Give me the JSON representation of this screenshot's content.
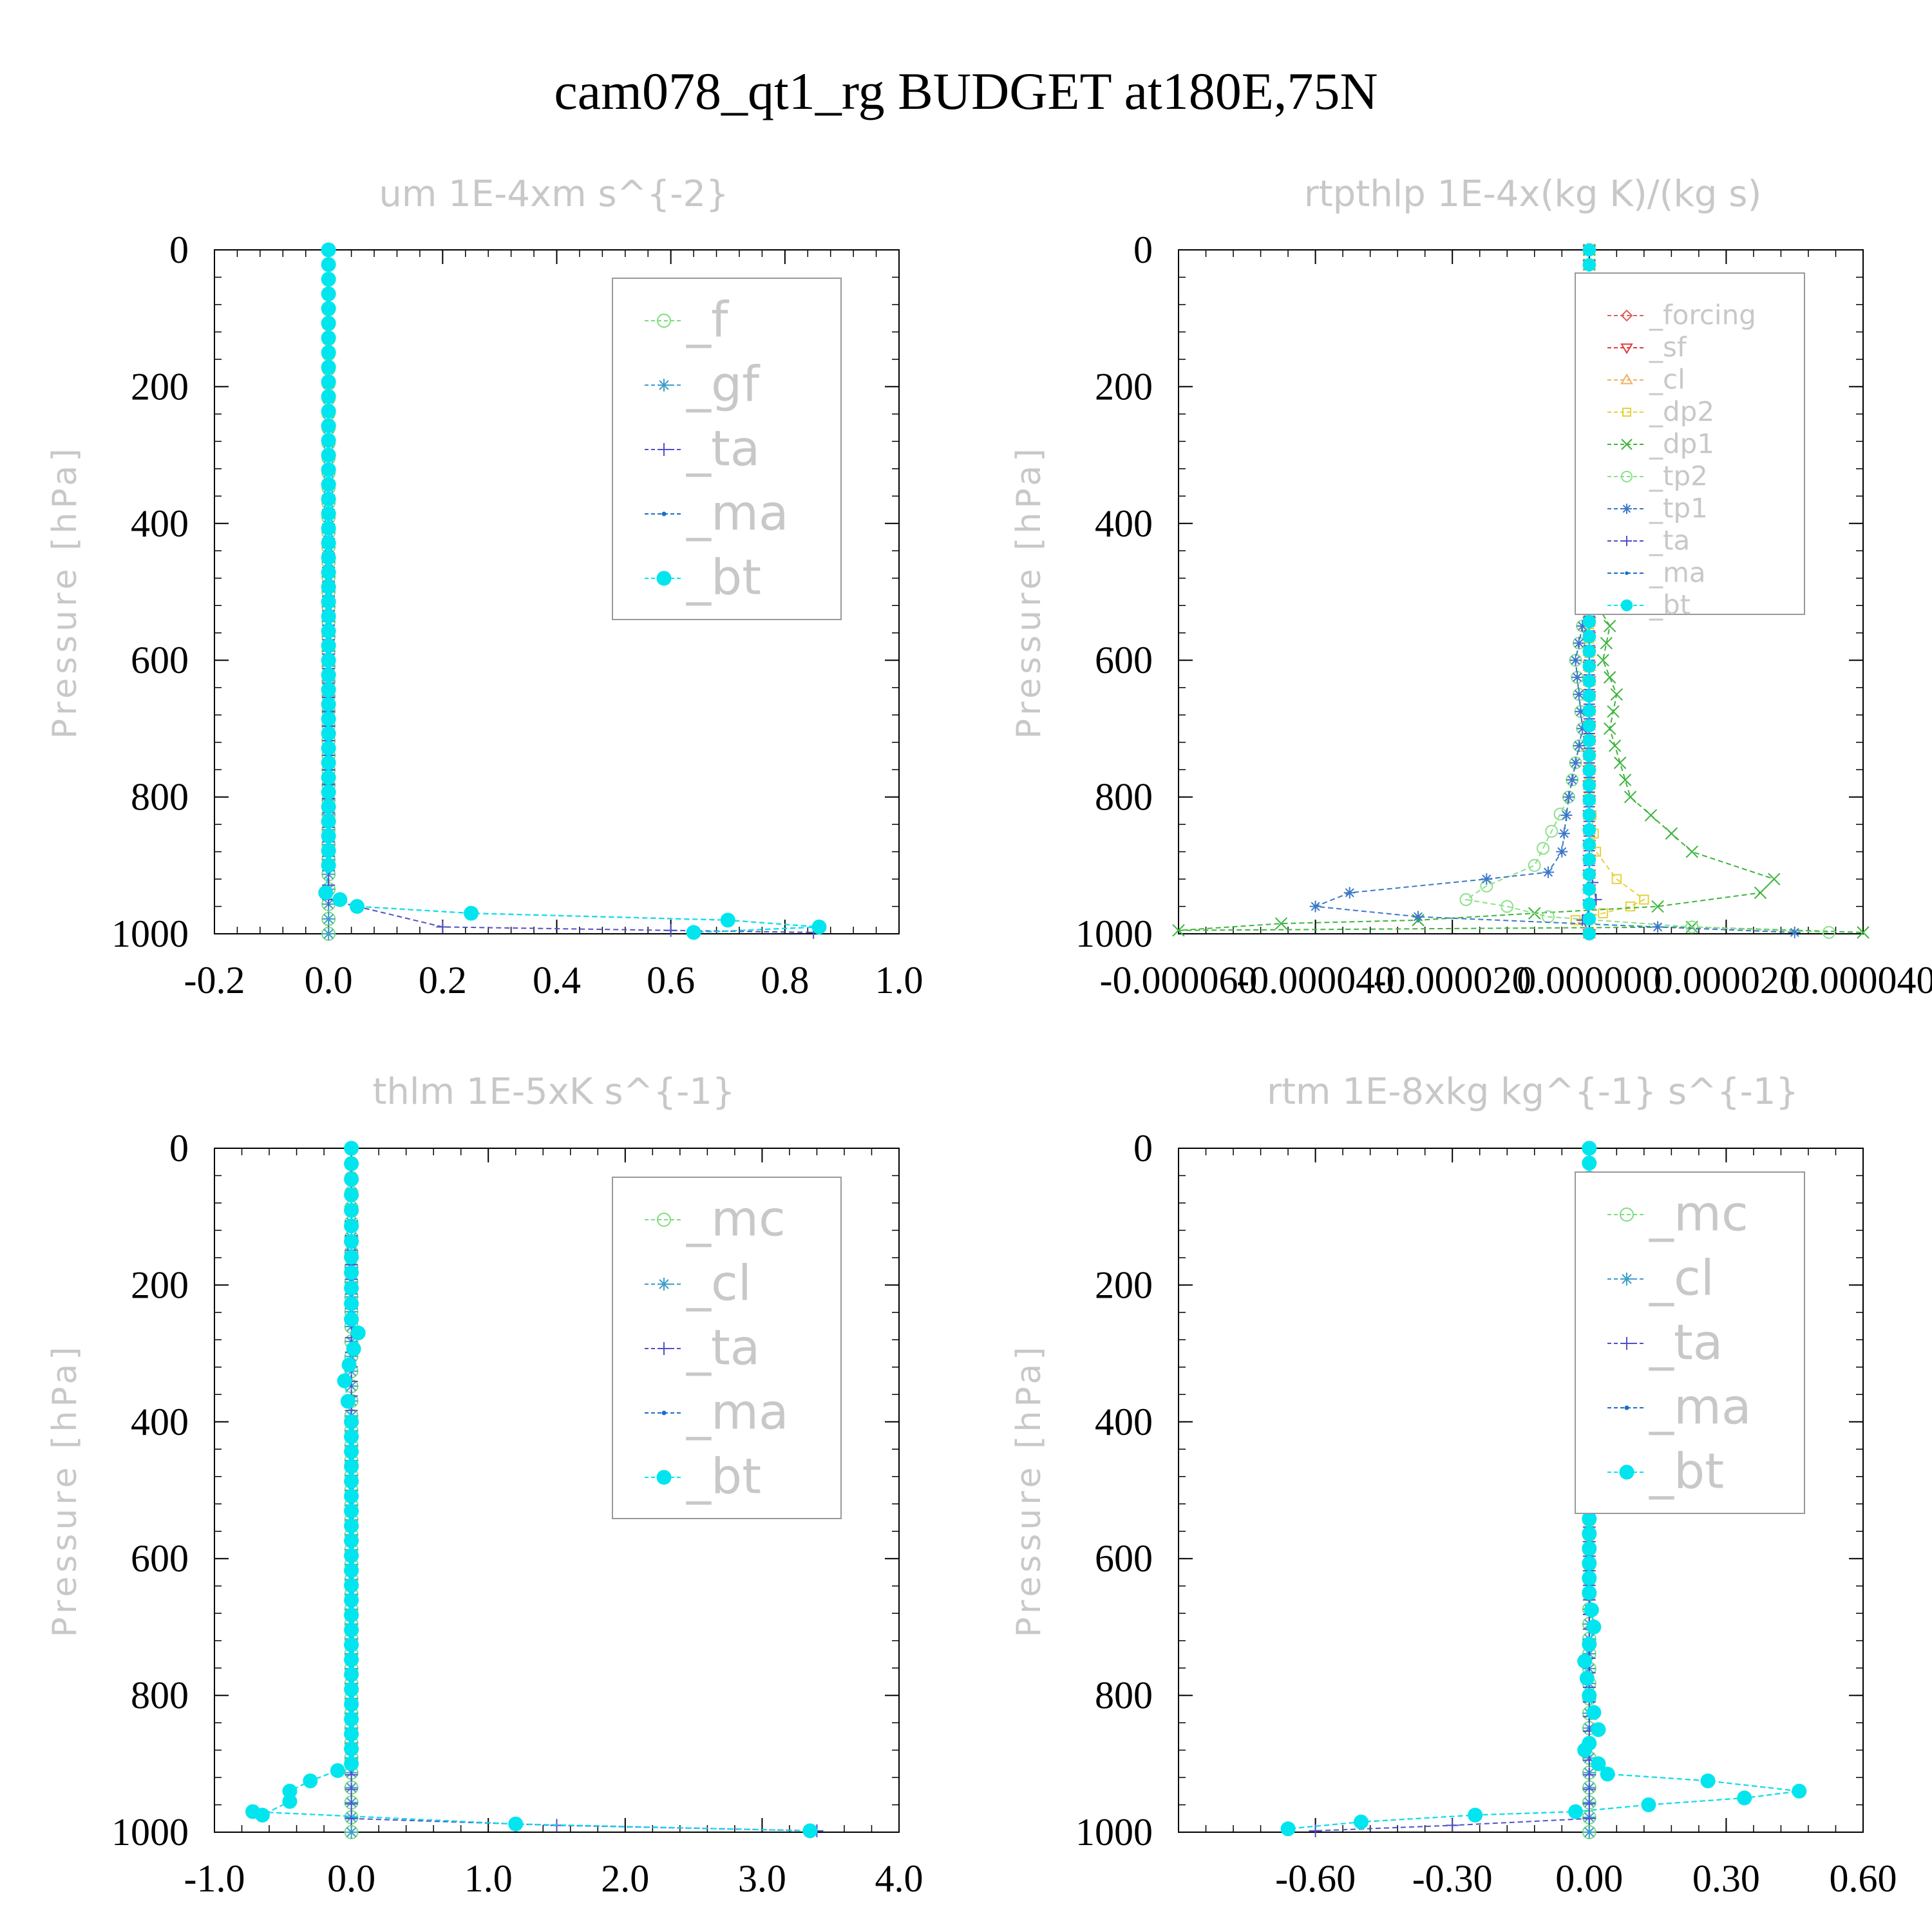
{
  "title": "cam078_qt1_rg  BUDGET at180E,75N",
  "chart_data": [
    {
      "type": "line",
      "title": "um   1E-4xm s^{-2}",
      "ylabel": "Pressure [hPa]",
      "xlim": [
        -0.2,
        1.0
      ],
      "ylim": [
        1000,
        0
      ],
      "xticks": [
        "-0.2",
        "0.0",
        "0.2",
        "0.4",
        "0.6",
        "0.8",
        "1.0"
      ],
      "yticks": [
        "0",
        "200",
        "400",
        "600",
        "800",
        "1000"
      ],
      "legend_position": "top-right",
      "series": [
        {
          "name": "_f",
          "color": "#7fdc7f",
          "marker": "circle-open",
          "x": [
            0,
            0,
            0
          ],
          "y": [
            0,
            500,
            1000
          ]
        },
        {
          "name": "_gf",
          "color": "#3d9ec8",
          "marker": "star",
          "x": [
            0,
            0,
            0
          ],
          "y": [
            0,
            500,
            1000
          ]
        },
        {
          "name": "_ta",
          "color": "#5050c8",
          "marker": "plus",
          "x": [
            0,
            0,
            0.2,
            0.6,
            0.85
          ],
          "y": [
            0,
            950,
            990,
            995,
            998
          ]
        },
        {
          "name": "_ma",
          "color": "#1a6ec8",
          "marker": "dot",
          "x": [
            0,
            0,
            -0.005,
            0.02,
            0.05,
            0.25,
            0.7,
            0.86,
            0.64
          ],
          "y": [
            0,
            900,
            940,
            950,
            960,
            970,
            980,
            990,
            998
          ]
        },
        {
          "name": "_bt",
          "color": "#00e5ee",
          "marker": "dot-filled",
          "x": [
            0,
            0,
            -0.005,
            0.02,
            0.05,
            0.25,
            0.7,
            0.86,
            0.64
          ],
          "y": [
            0,
            900,
            940,
            950,
            960,
            970,
            980,
            990,
            998
          ]
        }
      ]
    },
    {
      "type": "line",
      "title": "rtpthlp   1E-4x(kg K)/(kg s)",
      "ylabel": "Pressure [hPa]",
      "xlim": [
        -6e-05,
        4e-05
      ],
      "ylim": [
        1000,
        0
      ],
      "xticks": [
        "-0.000060",
        "-0.000040",
        "-0.000020",
        "0.000000",
        "0.000020",
        "0.000040"
      ],
      "yticks": [
        "0",
        "200",
        "400",
        "600",
        "800",
        "1000"
      ],
      "legend_position": "top-right",
      "series": [
        {
          "name": "_forcing",
          "color": "#e06060",
          "marker": "diamond",
          "x": [
            0,
            0,
            0
          ],
          "y": [
            0,
            500,
            1000
          ]
        },
        {
          "name": "_sf",
          "color": "#e03c3c",
          "marker": "triangle-down",
          "x": [
            0,
            0,
            0
          ],
          "y": [
            0,
            500,
            1000
          ]
        },
        {
          "name": "_cl",
          "color": "#f0b060",
          "marker": "triangle-up",
          "x": [
            0,
            0,
            0
          ],
          "y": [
            0,
            500,
            1000
          ]
        },
        {
          "name": "_dp2",
          "color": "#e8d040",
          "marker": "square",
          "x": [
            0,
            0,
            1e-06,
            4e-06,
            8e-06,
            6e-06,
            2e-06,
            -2e-06,
            0
          ],
          "y": [
            0,
            800,
            880,
            920,
            950,
            960,
            970,
            980,
            998
          ]
        },
        {
          "name": "_dp1",
          "color": "#3cb43c",
          "marker": "cross",
          "x": [
            0,
            0,
            3e-06,
            2e-06,
            4e-06,
            3e-06,
            6e-06,
            1.5e-05,
            2.7e-05,
            2.5e-05,
            1e-05,
            -8e-06,
            -2.5e-05,
            -4.5e-05,
            -6e-05,
            1.5e-05,
            4e-05
          ],
          "y": [
            0,
            500,
            550,
            600,
            650,
            700,
            800,
            880,
            920,
            940,
            960,
            970,
            980,
            985,
            995,
            990,
            998
          ]
        },
        {
          "name": "_tp2",
          "color": "#8ce08c",
          "marker": "circle-open",
          "x": [
            0,
            0,
            -2e-06,
            -1e-06,
            -3e-06,
            -8e-06,
            -1.5e-05,
            -1.8e-05,
            -1.2e-05,
            -6e-06,
            1.5e-05,
            3.5e-05
          ],
          "y": [
            0,
            500,
            600,
            700,
            800,
            900,
            930,
            950,
            960,
            975,
            990,
            998
          ]
        },
        {
          "name": "_tp1",
          "color": "#3c78c8",
          "marker": "star",
          "x": [
            0,
            0,
            -2e-06,
            -1e-06,
            -3e-06,
            -4e-06,
            -6e-06,
            -1.5e-05,
            -3.5e-05,
            -4e-05,
            -2.5e-05,
            1e-05,
            3e-05
          ],
          "y": [
            0,
            500,
            600,
            700,
            800,
            880,
            910,
            920,
            940,
            960,
            975,
            990,
            998
          ]
        },
        {
          "name": "_ta",
          "color": "#5050c8",
          "marker": "plus",
          "x": [
            0,
            0,
            1e-06,
            -1e-06,
            0
          ],
          "y": [
            0,
            900,
            950,
            980,
            998
          ]
        },
        {
          "name": "_ma",
          "color": "#1a6ec8",
          "marker": "dot",
          "x": [
            0,
            0,
            0
          ],
          "y": [
            0,
            500,
            1000
          ]
        },
        {
          "name": "_bt",
          "color": "#00e5ee",
          "marker": "dot-filled",
          "x": [
            0,
            0,
            0
          ],
          "y": [
            0,
            500,
            1000
          ]
        }
      ]
    },
    {
      "type": "line",
      "title": "thlm   1E-5xK s^{-1}",
      "ylabel": "Pressure [hPa]",
      "xlim": [
        -1.0,
        4.0
      ],
      "ylim": [
        1000,
        0
      ],
      "xticks": [
        "-1.0",
        "0.0",
        "1.0",
        "2.0",
        "3.0",
        "4.0"
      ],
      "yticks": [
        "0",
        "200",
        "400",
        "600",
        "800",
        "1000"
      ],
      "legend_position": "top-right",
      "series": [
        {
          "name": "_mc",
          "color": "#7fdc7f",
          "marker": "circle-open",
          "x": [
            0,
            0,
            0
          ],
          "y": [
            0,
            500,
            1000
          ]
        },
        {
          "name": "_cl",
          "color": "#3d9ec8",
          "marker": "star",
          "x": [
            0,
            0,
            0
          ],
          "y": [
            0,
            500,
            1000
          ]
        },
        {
          "name": "_ta",
          "color": "#5050c8",
          "marker": "plus",
          "x": [
            0,
            0,
            1.5,
            3.4
          ],
          "y": [
            0,
            980,
            990,
            998
          ]
        },
        {
          "name": "_ma",
          "color": "#1a6ec8",
          "marker": "dot",
          "x": [
            0,
            0,
            0.05,
            -0.05,
            0,
            0,
            -0.1,
            -0.3,
            -0.45,
            -0.45,
            -0.65,
            -0.72,
            1.2,
            3.35
          ],
          "y": [
            0,
            250,
            270,
            340,
            400,
            900,
            910,
            925,
            940,
            955,
            975,
            970,
            988,
            998
          ]
        },
        {
          "name": "_bt",
          "color": "#00e5ee",
          "marker": "dot-filled",
          "x": [
            0,
            0,
            0.05,
            -0.05,
            0,
            0,
            -0.1,
            -0.3,
            -0.45,
            -0.45,
            -0.65,
            -0.72,
            1.2,
            3.35
          ],
          "y": [
            0,
            250,
            270,
            340,
            400,
            900,
            910,
            925,
            940,
            955,
            975,
            970,
            988,
            998
          ]
        }
      ]
    },
    {
      "type": "line",
      "title": "rtm   1E-8xkg kg^{-1} s^{-1}",
      "ylabel": "Pressure [hPa]",
      "xlim": [
        -0.9,
        0.6
      ],
      "ylim": [
        1000,
        0
      ],
      "xticks": [
        "-0.60",
        "-0.30",
        "0.00",
        "0.30",
        "0.60"
      ],
      "yticks": [
        "0",
        "200",
        "400",
        "600",
        "800",
        "1000"
      ],
      "legend_position": "top-right",
      "series": [
        {
          "name": "_mc",
          "color": "#7fdc7f",
          "marker": "circle-open",
          "x": [
            0,
            0,
            0
          ],
          "y": [
            0,
            500,
            1000
          ]
        },
        {
          "name": "_cl",
          "color": "#3d9ec8",
          "marker": "star",
          "x": [
            0,
            0,
            0
          ],
          "y": [
            0,
            500,
            1000
          ]
        },
        {
          "name": "_ta",
          "color": "#5050c8",
          "marker": "plus",
          "x": [
            0,
            0,
            -0.3,
            -0.6
          ],
          "y": [
            0,
            980,
            990,
            998
          ]
        },
        {
          "name": "_ma",
          "color": "#1a6ec8",
          "marker": "dot",
          "x": [
            0,
            0,
            0.01,
            -0.01,
            0,
            0.02,
            0,
            -0.01,
            0.02,
            0.04,
            0.26,
            0.46,
            0.34,
            0.13,
            -0.03,
            -0.25,
            -0.5,
            -0.66
          ],
          "y": [
            0,
            650,
            700,
            750,
            800,
            850,
            870,
            880,
            900,
            915,
            925,
            940,
            950,
            960,
            970,
            975,
            985,
            995
          ]
        },
        {
          "name": "_bt",
          "color": "#00e5ee",
          "marker": "dot-filled",
          "x": [
            0,
            0,
            0.01,
            -0.01,
            0,
            0.02,
            0,
            -0.01,
            0.02,
            0.04,
            0.26,
            0.46,
            0.34,
            0.13,
            -0.03,
            -0.25,
            -0.5,
            -0.66
          ],
          "y": [
            0,
            650,
            700,
            750,
            800,
            850,
            870,
            880,
            900,
            915,
            925,
            940,
            950,
            960,
            970,
            975,
            985,
            995
          ]
        }
      ]
    }
  ]
}
